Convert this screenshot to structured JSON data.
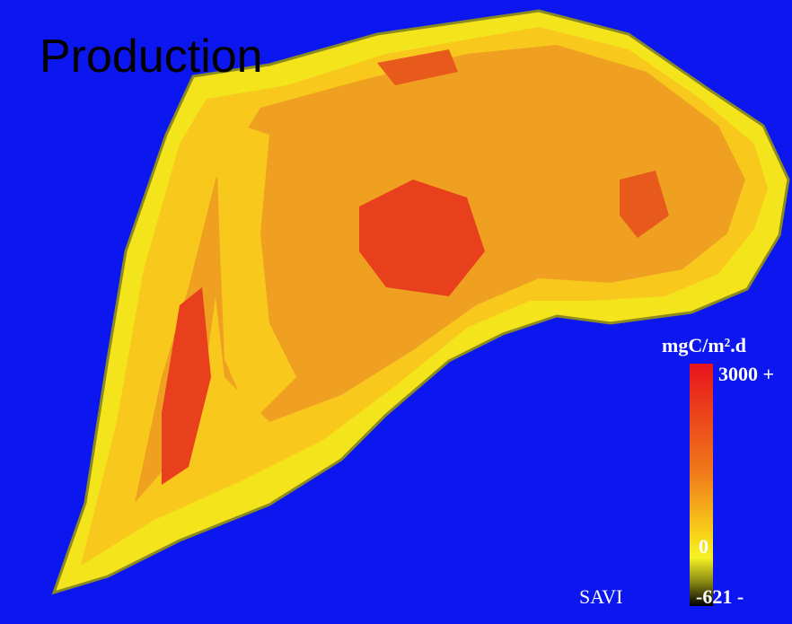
{
  "title": "Production",
  "legend": {
    "unit": "mgC/m².d",
    "top_label": "3000 +",
    "zero_label": "0",
    "bottom_label": "-621 -",
    "index_label": "SAVI"
  }
}
